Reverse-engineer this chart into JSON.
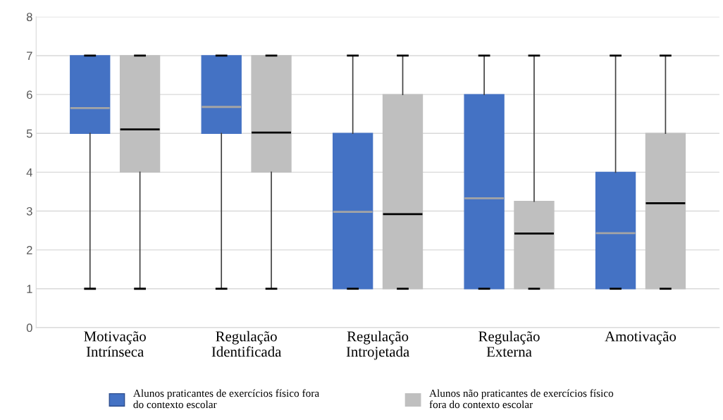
{
  "chart_data": {
    "type": "box",
    "categories": [
      "Motivação\nIntrínseca",
      "Regulação\nIdentificada",
      "Regulação\nIntrojetada",
      "Regulação\nExterna",
      "Amotivação"
    ],
    "series": [
      {
        "name": "Alunos praticantes de exercícios físico fora\ndo contexto escolar",
        "color": "#4472c4",
        "boxes": [
          {
            "low": 1,
            "q1": 5,
            "median": 5.65,
            "q3": 7,
            "high": 7
          },
          {
            "low": 1,
            "q1": 5,
            "median": 5.68,
            "q3": 7,
            "high": 7
          },
          {
            "low": 1,
            "q1": 1,
            "median": 2.98,
            "q3": 5,
            "high": 7
          },
          {
            "low": 1,
            "q1": 1,
            "median": 3.33,
            "q3": 6,
            "high": 7
          },
          {
            "low": 1,
            "q1": 1,
            "median": 2.43,
            "q3": 4,
            "high": 7
          }
        ]
      },
      {
        "name": "Alunos não praticantes de exercícios físico\nfora do contexto escolar",
        "color": "#bfbfbf",
        "boxes": [
          {
            "low": 1,
            "q1": 4,
            "median": 5.1,
            "q3": 7,
            "high": 7
          },
          {
            "low": 1,
            "q1": 4,
            "median": 5.02,
            "q3": 7,
            "high": 7
          },
          {
            "low": 1,
            "q1": 1,
            "median": 2.92,
            "q3": 6,
            "high": 7
          },
          {
            "low": 1,
            "q1": 1,
            "median": 2.42,
            "q3": 3.25,
            "high": 7
          },
          {
            "low": 1,
            "q1": 1,
            "median": 3.2,
            "q3": 5,
            "high": 7
          }
        ]
      }
    ],
    "ylim": [
      0,
      8
    ],
    "yticks": [
      0,
      1,
      2,
      3,
      4,
      5,
      6,
      7,
      8
    ],
    "grid": "y",
    "legend": "bottom"
  }
}
